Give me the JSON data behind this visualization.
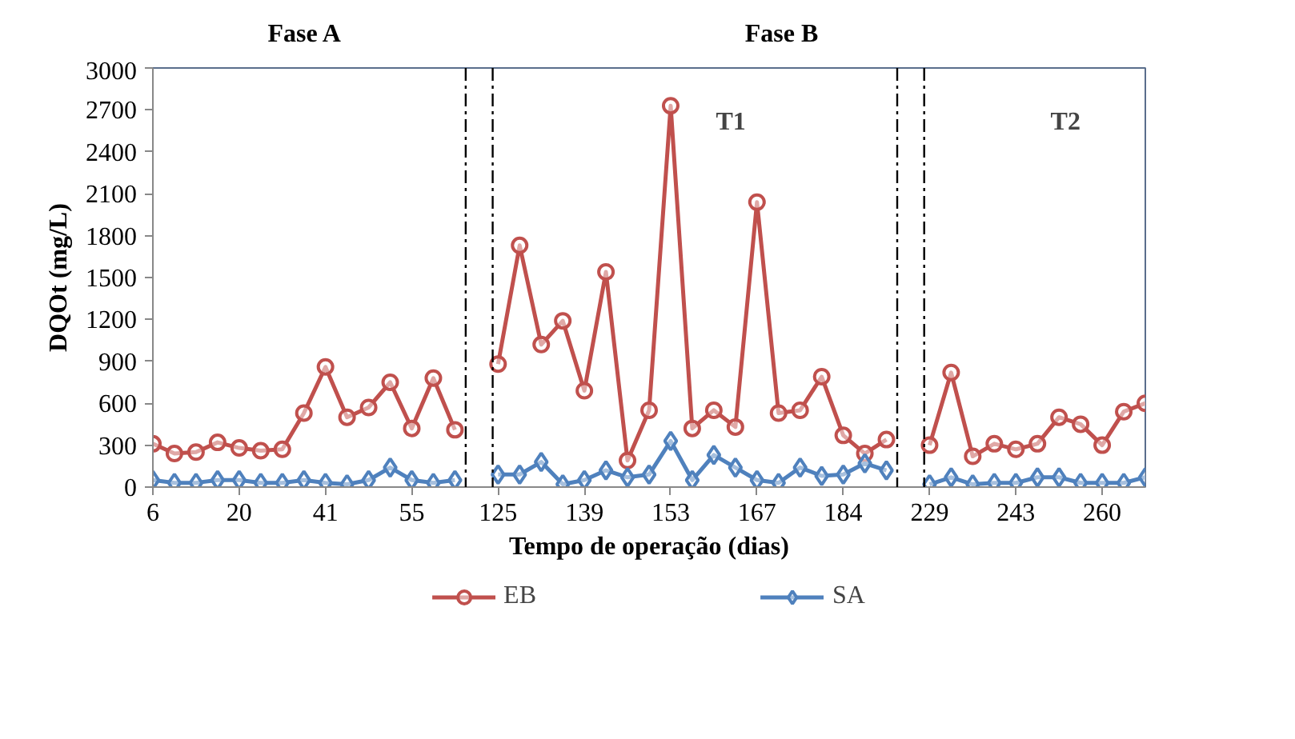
{
  "chart_data": {
    "type": "line",
    "xlabel": "Tempo de operação (dias)",
    "ylabel": "DQOt (mg/L)",
    "categories": [
      "6",
      null,
      null,
      null,
      "20",
      null,
      null,
      null,
      "41",
      null,
      null,
      null,
      "55",
      null,
      null,
      null,
      "125",
      null,
      null,
      null,
      "139",
      null,
      null,
      null,
      "153",
      null,
      null,
      null,
      "167",
      null,
      null,
      null,
      "184",
      null,
      null,
      null,
      "229",
      null,
      null,
      null,
      "243",
      null,
      null,
      null,
      "260",
      null,
      null
    ],
    "ylim": [
      0,
      3000
    ],
    "yticks": [
      0,
      300,
      600,
      900,
      1200,
      1500,
      1800,
      2100,
      2400,
      2700,
      3000
    ],
    "series": [
      {
        "name": "EB",
        "color": "#c0504d",
        "marker": "circle",
        "values": [
          310,
          240,
          250,
          320,
          280,
          260,
          270,
          530,
          860,
          500,
          570,
          750,
          420,
          780,
          410,
          null,
          880,
          1730,
          1020,
          1190,
          690,
          1540,
          190,
          550,
          2730,
          420,
          550,
          430,
          2040,
          530,
          550,
          790,
          370,
          240,
          340,
          null,
          300,
          820,
          220,
          310,
          270,
          310,
          500,
          450,
          300,
          540,
          600
        ]
      },
      {
        "name": "SA",
        "color": "#4f81bd",
        "marker": "diamond",
        "values": [
          50,
          30,
          30,
          50,
          50,
          30,
          30,
          50,
          30,
          20,
          50,
          140,
          50,
          30,
          50,
          null,
          90,
          90,
          180,
          20,
          50,
          120,
          70,
          90,
          330,
          50,
          230,
          140,
          50,
          30,
          140,
          80,
          90,
          170,
          120,
          null,
          20,
          70,
          20,
          30,
          30,
          70,
          70,
          30,
          30,
          30,
          70
        ]
      }
    ],
    "annotations": [
      "Fase A",
      "Fase B",
      "T1",
      "T2"
    ],
    "grid": false,
    "legend": "bottom",
    "line_style": "solid"
  }
}
